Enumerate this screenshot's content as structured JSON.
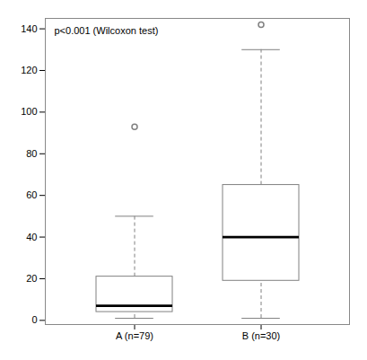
{
  "chart_data": {
    "type": "box",
    "categories": [
      "A (n=79)",
      "B (n=30)"
    ],
    "boxes": [
      {
        "q1": 4,
        "median": 7,
        "q3": 21,
        "whisker_low": 1,
        "whisker_high": 50,
        "outliers": [
          93
        ]
      },
      {
        "q1": 19,
        "median": 40,
        "q3": 65,
        "whisker_low": 1,
        "whisker_high": 130,
        "outliers": [
          142
        ]
      }
    ],
    "ylim": [
      -2,
      145
    ],
    "yticks": [
      0,
      20,
      40,
      60,
      80,
      100,
      120,
      140
    ],
    "annotation": "p<0.001 (Wilcoxon test)",
    "color": "#808080",
    "line_style": "dashed",
    "grid": false
  }
}
